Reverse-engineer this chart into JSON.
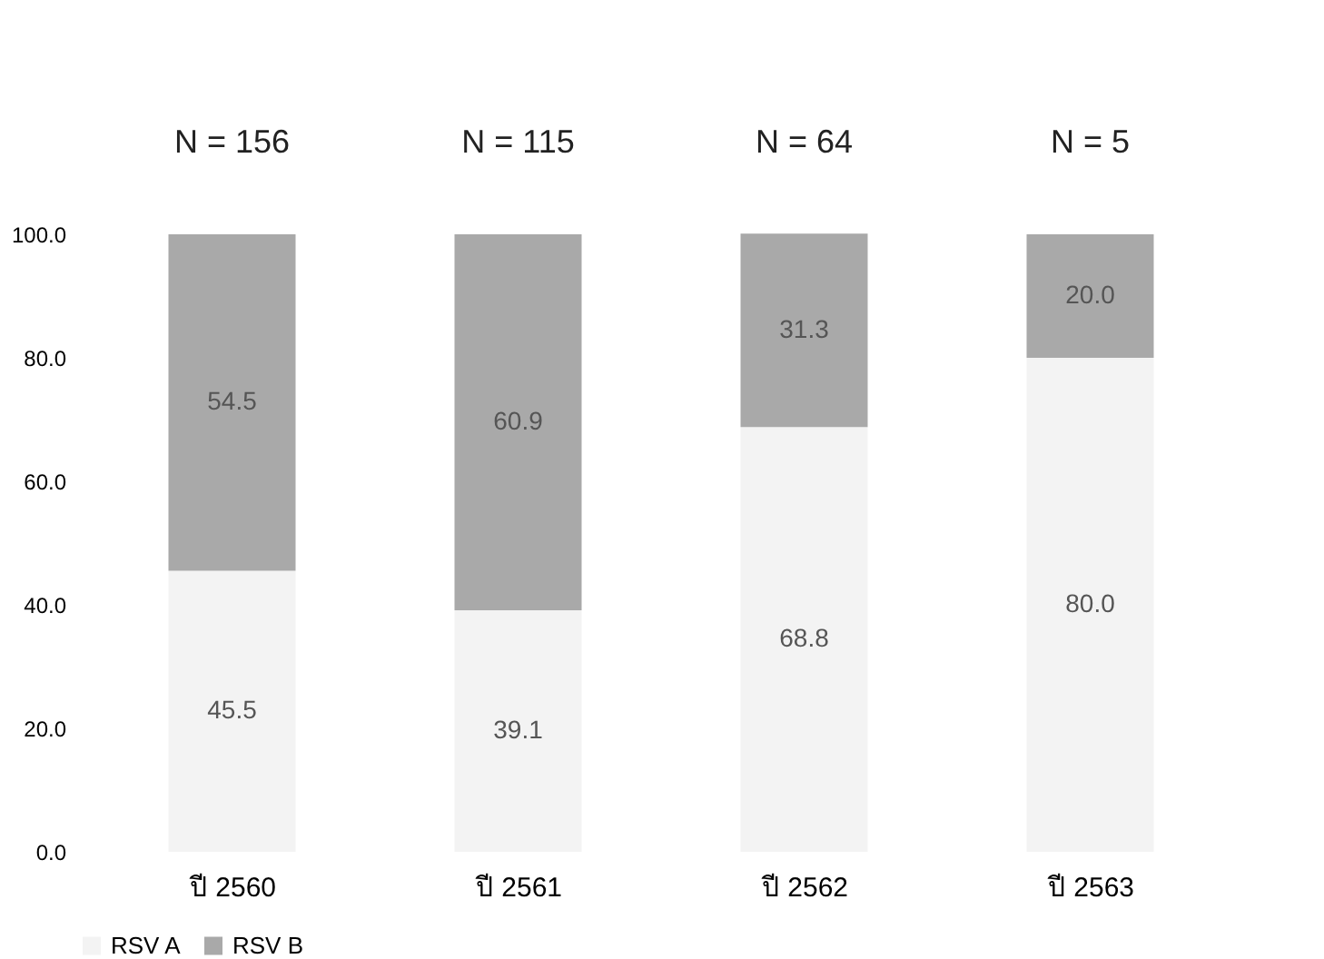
{
  "chart_data": {
    "type": "bar",
    "stacked": true,
    "categories": [
      "ปี 2560",
      "ปี 2561",
      "ปี 2562",
      "ปี 2563"
    ],
    "series": [
      {
        "name": "RSV A",
        "color": "#f3f3f3",
        "values": [
          45.5,
          39.1,
          68.8,
          80.0
        ],
        "value_labels": [
          "45.5",
          "39.1",
          "68.8",
          "80.0"
        ]
      },
      {
        "name": "RSV B",
        "color": "#a9a9a9",
        "values": [
          54.5,
          60.9,
          31.3,
          20.0
        ],
        "value_labels": [
          "54.5",
          "60.9",
          "31.3",
          "20.0"
        ]
      }
    ],
    "ylim": [
      0,
      100
    ],
    "yticks": [
      {
        "value": 0,
        "label": "0.0"
      },
      {
        "value": 20,
        "label": "20.0"
      },
      {
        "value": 40,
        "label": "40.0"
      },
      {
        "value": 60,
        "label": "60.0"
      },
      {
        "value": 80,
        "label": "80.0"
      },
      {
        "value": 100,
        "label": "100.0"
      }
    ],
    "annotations": [
      "N = 156",
      "N = 115",
      "N = 64",
      "N = 5"
    ],
    "grid": false,
    "legend": "bottom"
  }
}
